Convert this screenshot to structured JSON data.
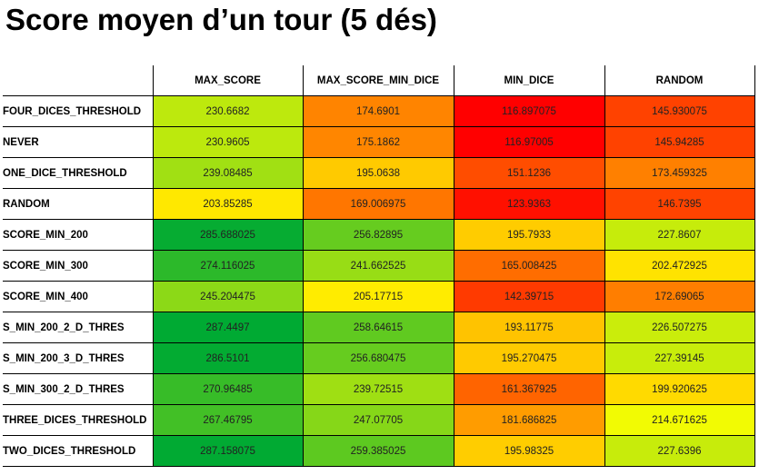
{
  "title": "Score moyen d’un tour (5 dés)",
  "chart_data": {
    "type": "heatmap",
    "title": "Score moyen d’un tour (5 dés)",
    "columns": [
      "MAX_SCORE",
      "MAX_SCORE_MIN_DICE",
      "MIN_DICE",
      "RANDOM"
    ],
    "rows": [
      {
        "label": "FOUR_DICES_THRESHOLD",
        "values": [
          "230.6682",
          "174.6901",
          "116.897075",
          "145.930075"
        ]
      },
      {
        "label": "NEVER",
        "values": [
          "230.9605",
          "175.1862",
          "116.97005",
          "145.94285"
        ]
      },
      {
        "label": "ONE_DICE_THRESHOLD",
        "values": [
          "239.08485",
          "195.0638",
          "151.1236",
          "173.459325"
        ]
      },
      {
        "label": "RANDOM",
        "values": [
          "203.85285",
          "169.006975",
          "123.9363",
          "146.7395"
        ]
      },
      {
        "label": "SCORE_MIN_200",
        "values": [
          "285.688025",
          "256.82895",
          "195.7933",
          "227.8607"
        ]
      },
      {
        "label": "SCORE_MIN_300",
        "values": [
          "274.116025",
          "241.662525",
          "165.008425",
          "202.472925"
        ]
      },
      {
        "label": "SCORE_MIN_400",
        "values": [
          "245.204475",
          "205.17715",
          "142.39715",
          "172.69065"
        ]
      },
      {
        "label": "S_MIN_200_2_D_THRES",
        "values": [
          "287.4497",
          "258.64615",
          "193.11775",
          "226.507275"
        ]
      },
      {
        "label": "S_MIN_200_3_D_THRES",
        "values": [
          "286.5101",
          "256.680475",
          "195.270475",
          "227.39145"
        ]
      },
      {
        "label": "S_MIN_300_2_D_THRES",
        "values": [
          "270.96485",
          "239.72515",
          "161.367925",
          "199.920625"
        ]
      },
      {
        "label": "THREE_DICES_THRESHOLD",
        "values": [
          "267.46795",
          "247.07705",
          "181.686825",
          "214.671625"
        ]
      },
      {
        "label": "TWO_DICES_THRESHOLD",
        "values": [
          "287.158075",
          "259.385025",
          "195.98325",
          "227.6396"
        ]
      }
    ],
    "color_scale": {
      "low": "#ff0000",
      "mid_low": "#ff7f00",
      "mid": "#ffff00",
      "high": "#00aa33"
    }
  }
}
